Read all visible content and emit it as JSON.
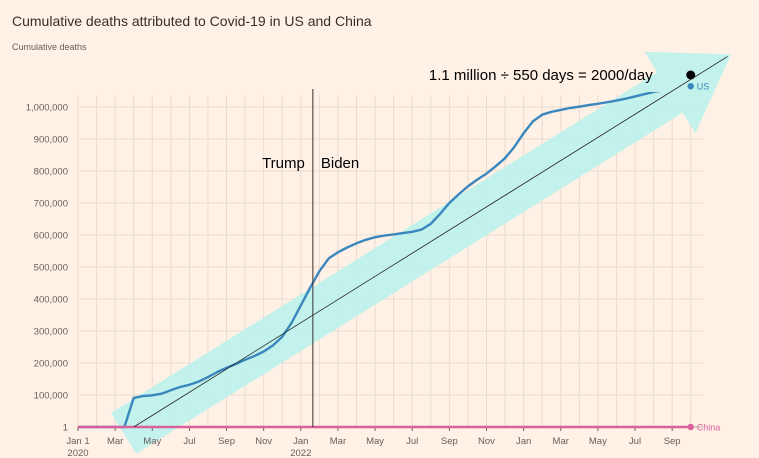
{
  "chart_data": {
    "type": "line",
    "title": "Cumulative deaths attributed to Covid-19 in US and China",
    "ylabel": "Cumulative deaths",
    "xlabel": "",
    "y_scale": "log-then-linear (1 at baseline, then linear from 100,000)",
    "ylim": [
      1,
      1100000
    ],
    "y_ticks": [
      {
        "value": 1,
        "label": "1"
      },
      {
        "value": 100000,
        "label": "100,000"
      },
      {
        "value": 200000,
        "label": "200,000"
      },
      {
        "value": 300000,
        "label": "300,000"
      },
      {
        "value": 400000,
        "label": "400,000"
      },
      {
        "value": 500000,
        "label": "500,000"
      },
      {
        "value": 600000,
        "label": "600,000"
      },
      {
        "value": 700000,
        "label": "700,000"
      },
      {
        "value": 800000,
        "label": "800,000"
      },
      {
        "value": 900000,
        "label": "900,000"
      },
      {
        "value": 1000000,
        "label": "1,000,000"
      }
    ],
    "x_unit": "months since Jan 2020",
    "xlim": [
      0,
      33.5
    ],
    "x_ticks": [
      {
        "value": 0,
        "label": "Jan 1",
        "sub": "2020"
      },
      {
        "value": 2,
        "label": "Mar"
      },
      {
        "value": 4,
        "label": "May"
      },
      {
        "value": 6,
        "label": "Jul"
      },
      {
        "value": 8,
        "label": "Sep"
      },
      {
        "value": 10,
        "label": "Nov"
      },
      {
        "value": 12,
        "label": "Jan",
        "sub": "2022"
      },
      {
        "value": 14,
        "label": "Mar"
      },
      {
        "value": 16,
        "label": "May"
      },
      {
        "value": 18,
        "label": "Jul"
      },
      {
        "value": 20,
        "label": "Sep"
      },
      {
        "value": 22,
        "label": "Nov"
      },
      {
        "value": 24,
        "label": "Jan"
      },
      {
        "value": 26,
        "label": "Mar"
      },
      {
        "value": 28,
        "label": "May"
      },
      {
        "value": 30,
        "label": "Jul"
      },
      {
        "value": 32,
        "label": "Sep"
      }
    ],
    "grid": true,
    "series": [
      {
        "name": "US",
        "color": "#3a87bd",
        "x": [
          0,
          1.5,
          2.5,
          3,
          3.5,
          4,
          4.5,
          5,
          5.5,
          6,
          6.5,
          7,
          7.5,
          8,
          8.5,
          9,
          9.5,
          10,
          10.5,
          11,
          11.5,
          12,
          12.5,
          13,
          13.5,
          14,
          14.5,
          15,
          15.5,
          16,
          16.5,
          17,
          17.5,
          18,
          18.5,
          19,
          19.5,
          20,
          20.5,
          21,
          21.5,
          22,
          22.5,
          23,
          23.5,
          24,
          24.5,
          25,
          25.5,
          26,
          26.5,
          27,
          27.5,
          28,
          28.5,
          29,
          29.5,
          30,
          30.5,
          31,
          31.5,
          32,
          32.5,
          33
        ],
        "values": [
          1,
          1,
          1,
          35000,
          68000,
          90000,
          104000,
          115000,
          125000,
          132000,
          142000,
          156000,
          172000,
          185000,
          197000,
          210000,
          222000,
          236000,
          255000,
          282000,
          325000,
          380000,
          435000,
          487000,
          527000,
          546000,
          561000,
          574000,
          585000,
          593000,
          598000,
          602000,
          606000,
          610000,
          617000,
          635000,
          666000,
          700000,
          727000,
          752000,
          773000,
          792000,
          815000,
          840000,
          875000,
          918000,
          955000,
          976000,
          985000,
          991000,
          997000,
          1001000,
          1006000,
          1010000,
          1015000,
          1020000,
          1026000,
          1033000,
          1040000,
          1047000,
          1052000,
          1057000,
          1062000,
          1065000
        ]
      },
      {
        "name": "China",
        "color": "#d9609c",
        "x": [
          0,
          33
        ],
        "values": [
          1,
          1
        ]
      }
    ],
    "annotations": {
      "formula": "1.1 million ÷ 550 days = 2000/day",
      "left_era": "Trump",
      "right_era": "Biden",
      "divider_month": 12.65,
      "trend_from": [
        3,
        1
      ],
      "trend_to": [
        33.8,
        1115000
      ],
      "marker_at": [
        33,
        1100000
      ],
      "arrow_color": "#bdf2ec"
    }
  }
}
